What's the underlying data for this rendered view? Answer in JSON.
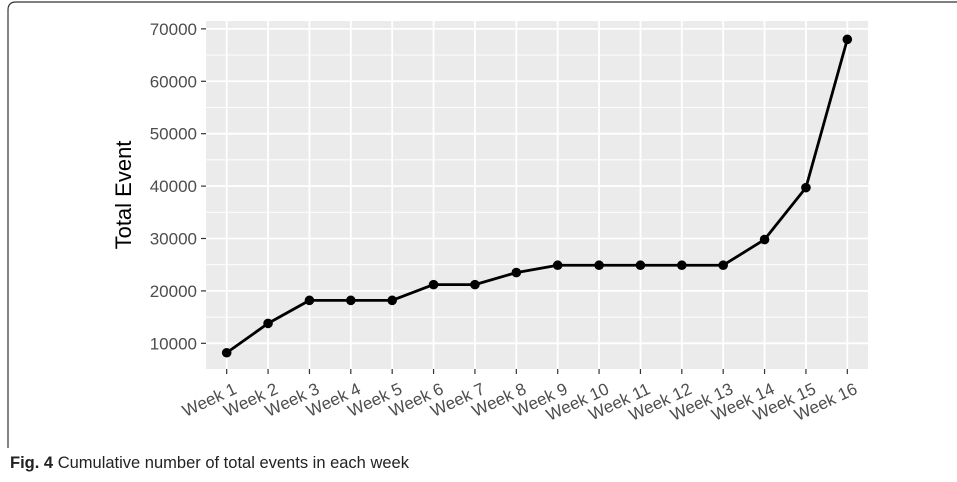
{
  "figure": {
    "label": "Fig. 4",
    "caption": "Cumulative number of total events in each week"
  },
  "chart_data": {
    "type": "line",
    "title": "",
    "xlabel": "",
    "ylabel": "Total Event",
    "categories": [
      "Week 1",
      "Week 2",
      "Week 3",
      "Week 4",
      "Week 5",
      "Week 6",
      "Week 7",
      "Week 8",
      "Week 9",
      "Week 10",
      "Week 11",
      "Week 12",
      "Week 13",
      "Week 14",
      "Week 15",
      "Week 16"
    ],
    "values": [
      8200,
      13800,
      18200,
      18200,
      18200,
      21200,
      21200,
      23500,
      24900,
      24900,
      24900,
      24900,
      24900,
      29800,
      39700,
      68000
    ],
    "yticks": [
      10000,
      20000,
      30000,
      40000,
      50000,
      60000,
      70000
    ],
    "ylim": [
      5100,
      71500
    ],
    "grid": true,
    "panel_color": "#ebebeb",
    "line_color": "#000000",
    "grid_color": "#ffffff"
  }
}
